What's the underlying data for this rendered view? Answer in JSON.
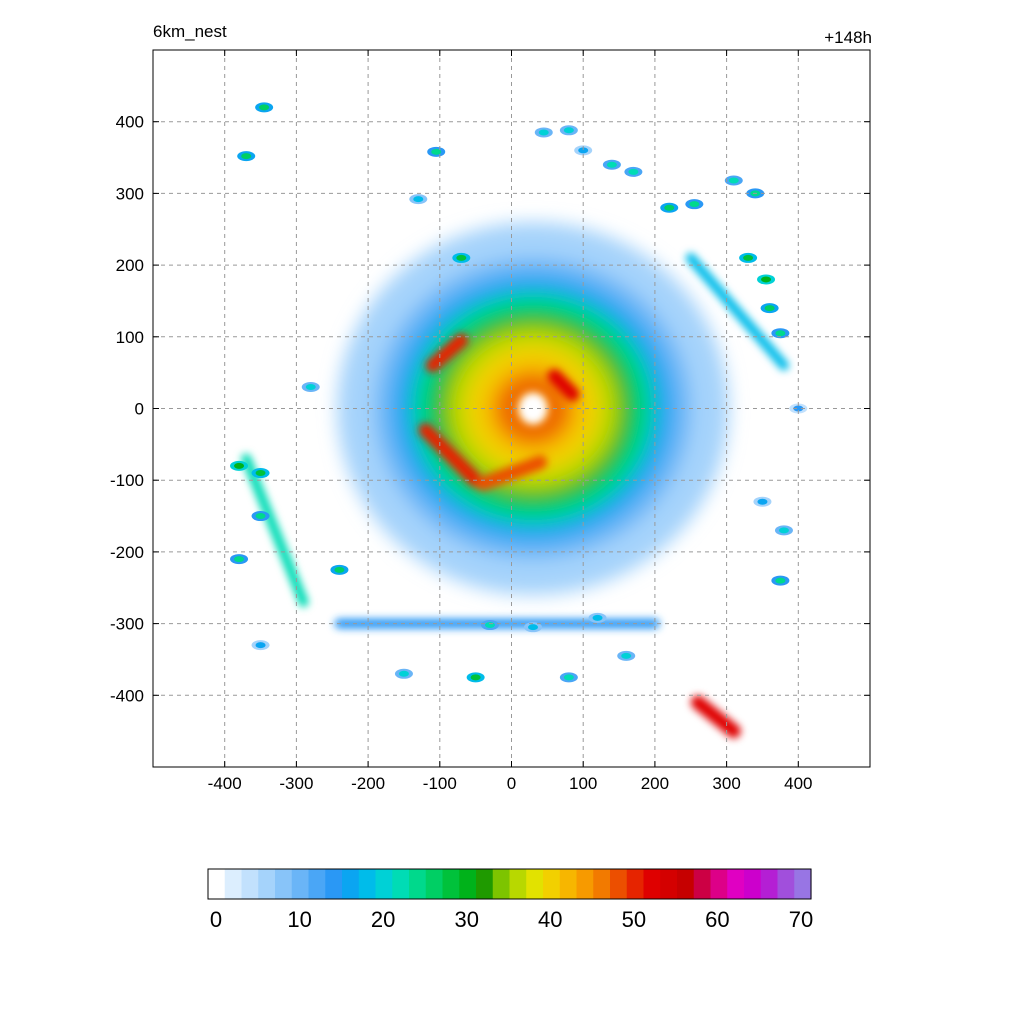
{
  "chart_data": {
    "type": "heatmap",
    "title": "",
    "left_label": "6km_nest",
    "right_label": "+148h",
    "xlabel": "",
    "ylabel": "",
    "xlim": [
      -500,
      500
    ],
    "ylim": [
      -500,
      500
    ],
    "x_ticks": [
      -400,
      -300,
      -200,
      -100,
      0,
      100,
      200,
      300,
      400
    ],
    "y_ticks": [
      400,
      300,
      200,
      100,
      0,
      -100,
      -200,
      -300,
      -400
    ],
    "grid": true,
    "colorbar": {
      "orientation": "horizontal",
      "placement": "bottom",
      "range": [
        0,
        70
      ],
      "step": 2,
      "tick_labels": [
        0,
        10,
        20,
        30,
        40,
        50,
        60,
        70
      ],
      "colors": [
        "#ffffff",
        "#dceefe",
        "#c2e1fd",
        "#a5d3fb",
        "#88c4f9",
        "#6ab5f7",
        "#4aa6f6",
        "#2a98f5",
        "#0ba5f1",
        "#00bcea",
        "#00d1d6",
        "#00dcb5",
        "#00d98c",
        "#00cf64",
        "#00c23b",
        "#00b21a",
        "#1f9a00",
        "#7dc400",
        "#b8d800",
        "#e2e200",
        "#f2d000",
        "#f7b600",
        "#f79a00",
        "#f27a00",
        "#ec4f00",
        "#e62400",
        "#df0000",
        "#d40000",
        "#c60000",
        "#cc0044",
        "#dd0088",
        "#e000c2",
        "#cc00cc",
        "#b41fd4",
        "#a14fdc",
        "#9875e4"
      ]
    },
    "field": {
      "center": [
        30,
        0
      ],
      "eye_radius": 20,
      "eye_value": 0,
      "rings": [
        {
          "radius": 25,
          "value": 44
        },
        {
          "radius": 40,
          "value": 50
        },
        {
          "radius": 60,
          "value": 44
        },
        {
          "radius": 90,
          "value": 40
        },
        {
          "radius": 115,
          "value": 36
        },
        {
          "radius": 135,
          "value": 30
        },
        {
          "radius": 160,
          "value": 24
        },
        {
          "radius": 185,
          "value": 16
        },
        {
          "radius": 210,
          "value": 10
        },
        {
          "radius": 260,
          "value": 6
        }
      ],
      "rainbands": [
        {
          "x": [
            60,
            85
          ],
          "y": [
            45,
            20
          ],
          "value": 52
        },
        {
          "x": [
            -110,
            -70
          ],
          "y": [
            60,
            95
          ],
          "value": 50
        },
        {
          "x": [
            -120,
            -50
          ],
          "y": [
            -30,
            -100
          ],
          "value": 50
        },
        {
          "x": [
            -40,
            40
          ],
          "y": [
            -105,
            -75
          ],
          "value": 48
        },
        {
          "x": [
            260,
            310
          ],
          "y": [
            -410,
            -450
          ],
          "value": 52
        },
        {
          "x": [
            -370,
            -290
          ],
          "y": [
            -70,
            -270
          ],
          "value": 22
        },
        {
          "x": [
            -240,
            200
          ],
          "y": [
            -300,
            -300
          ],
          "value": 14
        },
        {
          "x": [
            250,
            380
          ],
          "y": [
            210,
            60
          ],
          "value": 18
        }
      ],
      "cells": [
        {
          "x": -345,
          "y": 420,
          "value": 26
        },
        {
          "x": -370,
          "y": 352,
          "value": 26
        },
        {
          "x": -105,
          "y": 358,
          "value": 24
        },
        {
          "x": -130,
          "y": 292,
          "value": 18
        },
        {
          "x": -70,
          "y": 210,
          "value": 28
        },
        {
          "x": 45,
          "y": 385,
          "value": 20
        },
        {
          "x": 80,
          "y": 388,
          "value": 20
        },
        {
          "x": 100,
          "y": 360,
          "value": 16
        },
        {
          "x": 140,
          "y": 340,
          "value": 22
        },
        {
          "x": 170,
          "y": 330,
          "value": 22
        },
        {
          "x": 220,
          "y": 280,
          "value": 26
        },
        {
          "x": 255,
          "y": 285,
          "value": 24
        },
        {
          "x": 310,
          "y": 318,
          "value": 22
        },
        {
          "x": 340,
          "y": 300,
          "value": 24
        },
        {
          "x": 330,
          "y": 210,
          "value": 28
        },
        {
          "x": 355,
          "y": 180,
          "value": 30
        },
        {
          "x": 360,
          "y": 140,
          "value": 26
        },
        {
          "x": 375,
          "y": 105,
          "value": 24
        },
        {
          "x": -380,
          "y": -80,
          "value": 30
        },
        {
          "x": -350,
          "y": -90,
          "value": 28
        },
        {
          "x": -350,
          "y": -150,
          "value": 24
        },
        {
          "x": -380,
          "y": -210,
          "value": 24
        },
        {
          "x": -240,
          "y": -225,
          "value": 26
        },
        {
          "x": -350,
          "y": -330,
          "value": 16
        },
        {
          "x": -30,
          "y": -302,
          "value": 22
        },
        {
          "x": 30,
          "y": -305,
          "value": 18
        },
        {
          "x": 120,
          "y": -292,
          "value": 18
        },
        {
          "x": 160,
          "y": -345,
          "value": 20
        },
        {
          "x": -150,
          "y": -370,
          "value": 20
        },
        {
          "x": -50,
          "y": -375,
          "value": 28
        },
        {
          "x": 80,
          "y": -375,
          "value": 22
        },
        {
          "x": 380,
          "y": -170,
          "value": 20
        },
        {
          "x": 375,
          "y": -240,
          "value": 24
        },
        {
          "x": 350,
          "y": -130,
          "value": 16
        },
        {
          "x": 400,
          "y": 0,
          "value": 14
        },
        {
          "x": -280,
          "y": 30,
          "value": 20
        }
      ]
    }
  }
}
